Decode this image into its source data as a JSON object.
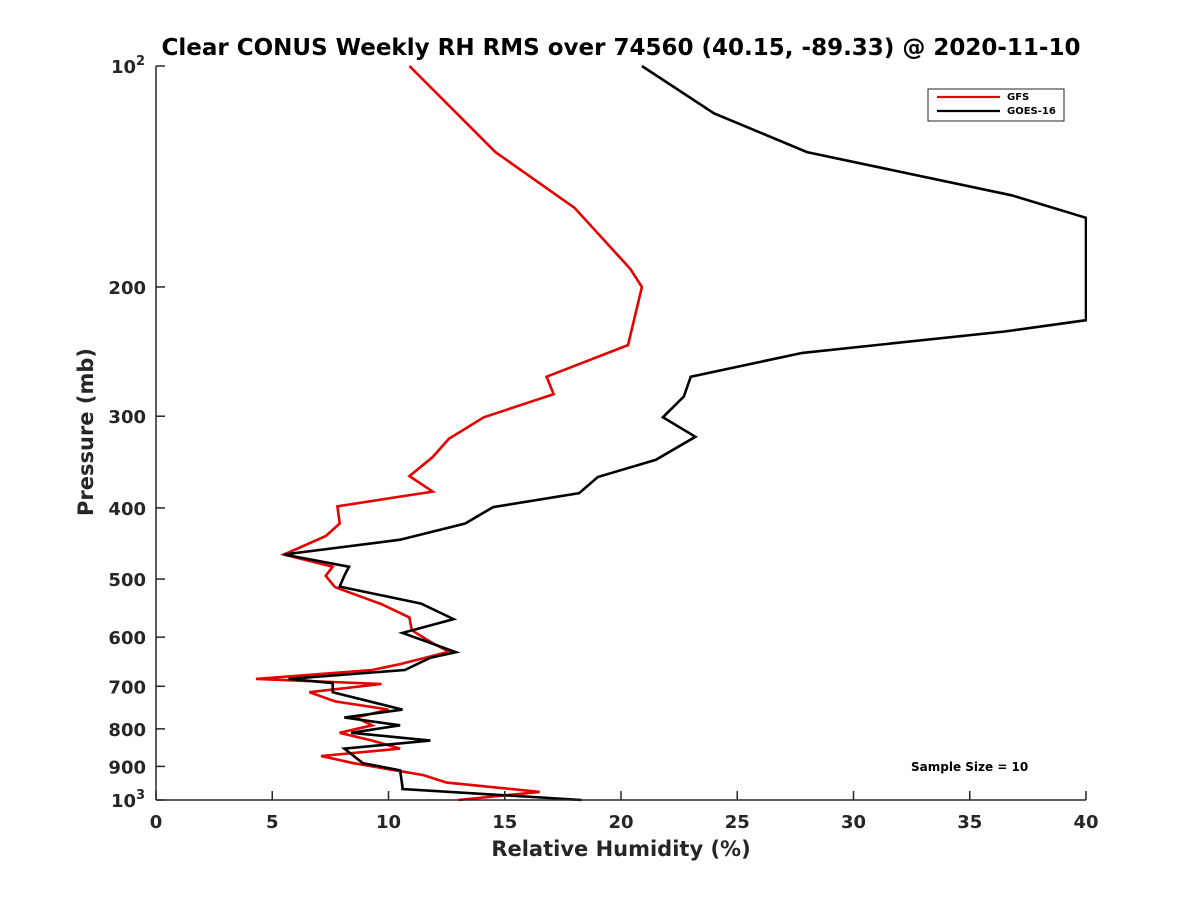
{
  "chart_data": {
    "type": "line",
    "title": "Clear CONUS Weekly RH RMS over 74560 (40.15, -89.33) @ 2020-11-10",
    "xlabel": "Relative Humidity (%)",
    "ylabel": "Pressure (mb)",
    "xlim": [
      0,
      40
    ],
    "ylim": [
      100,
      1000
    ],
    "y_scale": "log",
    "y_reversed": true,
    "x_ticks": [
      "0",
      "5",
      "10",
      "15",
      "20",
      "25",
      "30",
      "35",
      "40"
    ],
    "y_ticks": [
      {
        "value": 100,
        "label": "10",
        "exp": "2"
      },
      {
        "value": 200,
        "label": "200",
        "exp": ""
      },
      {
        "value": 300,
        "label": "300",
        "exp": ""
      },
      {
        "value": 400,
        "label": "400",
        "exp": ""
      },
      {
        "value": 500,
        "label": "500",
        "exp": ""
      },
      {
        "value": 600,
        "label": "600",
        "exp": ""
      },
      {
        "value": 700,
        "label": "700",
        "exp": ""
      },
      {
        "value": 800,
        "label": "800",
        "exp": ""
      },
      {
        "value": 900,
        "label": "900",
        "exp": ""
      },
      {
        "value": 1000,
        "label": "10",
        "exp": "3"
      }
    ],
    "grid": false,
    "legend_position": "top-right",
    "annotation": "Sample Size = 10",
    "series": [
      {
        "name": "GFS",
        "color": "#e60000",
        "points": [
          [
            10.9,
            100
          ],
          [
            14.6,
            131
          ],
          [
            18.0,
            156
          ],
          [
            20.4,
            189
          ],
          [
            20.9,
            200
          ],
          [
            20.3,
            240
          ],
          [
            16.8,
            265
          ],
          [
            17.1,
            280
          ],
          [
            14.1,
            301
          ],
          [
            12.6,
            322
          ],
          [
            11.9,
            341
          ],
          [
            10.9,
            362
          ],
          [
            11.9,
            380
          ],
          [
            7.8,
            398
          ],
          [
            7.9,
            420
          ],
          [
            7.3,
            437
          ],
          [
            5.5,
            463
          ],
          [
            7.6,
            481
          ],
          [
            7.3,
            495
          ],
          [
            7.7,
            513
          ],
          [
            9.7,
            541
          ],
          [
            10.9,
            564
          ],
          [
            11.0,
            587
          ],
          [
            11.8,
            609
          ],
          [
            12.6,
            628
          ],
          [
            10.5,
            653
          ],
          [
            9.3,
            665
          ],
          [
            4.3,
            684
          ],
          [
            9.7,
            695
          ],
          [
            6.6,
            713
          ],
          [
            7.7,
            734
          ],
          [
            10.0,
            753
          ],
          [
            8.6,
            772
          ],
          [
            9.3,
            791
          ],
          [
            7.9,
            810
          ],
          [
            9.3,
            830
          ],
          [
            10.5,
            851
          ],
          [
            7.1,
            871
          ],
          [
            8.5,
            891
          ],
          [
            11.5,
            925
          ],
          [
            12.5,
            947
          ],
          [
            16.5,
            975
          ],
          [
            13.0,
            1000
          ]
        ]
      },
      {
        "name": "GOES-16",
        "color": "#000000",
        "points": [
          [
            20.9,
            100
          ],
          [
            24.0,
            116
          ],
          [
            28.0,
            131
          ],
          [
            36.8,
            150
          ],
          [
            40.0,
            161
          ],
          [
            40.0,
            222
          ],
          [
            36.5,
            230
          ],
          [
            27.8,
            246
          ],
          [
            23.0,
            265
          ],
          [
            22.7,
            282
          ],
          [
            21.8,
            301
          ],
          [
            23.2,
            320
          ],
          [
            21.5,
            344
          ],
          [
            19.0,
            363
          ],
          [
            18.2,
            382
          ],
          [
            14.5,
            399
          ],
          [
            13.3,
            420
          ],
          [
            10.5,
            442
          ],
          [
            5.5,
            463
          ],
          [
            8.3,
            481
          ],
          [
            8.1,
            495
          ],
          [
            7.9,
            512
          ],
          [
            11.4,
            540
          ],
          [
            12.8,
            567
          ],
          [
            10.6,
            592
          ],
          [
            12.9,
            629
          ],
          [
            11.8,
            640
          ],
          [
            10.7,
            665
          ],
          [
            5.7,
            684
          ],
          [
            7.6,
            693
          ],
          [
            7.6,
            713
          ],
          [
            10.6,
            753
          ],
          [
            8.1,
            772
          ],
          [
            10.5,
            791
          ],
          [
            8.4,
            810
          ],
          [
            11.8,
            830
          ],
          [
            8.1,
            851
          ],
          [
            8.9,
            891
          ],
          [
            10.5,
            911
          ],
          [
            10.6,
            960
          ],
          [
            10.6,
            966
          ],
          [
            18.3,
            1000
          ]
        ]
      }
    ]
  }
}
